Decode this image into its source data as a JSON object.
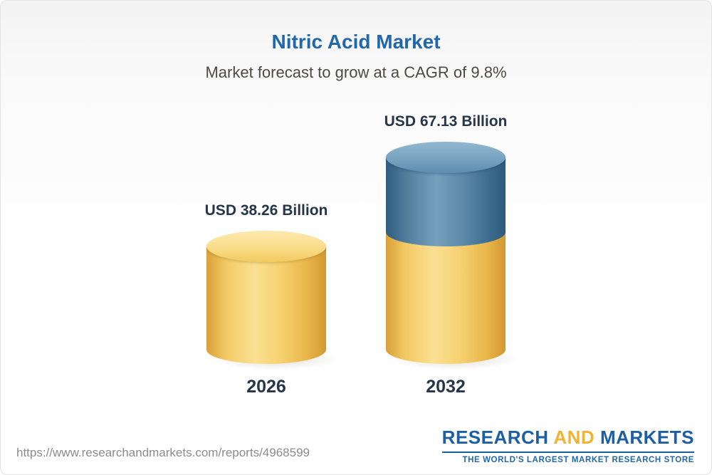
{
  "header": {
    "title": "Nitric Acid Market",
    "subtitle": "Market forecast to grow at a CAGR of 9.8%"
  },
  "chart_data": {
    "type": "bar",
    "categories": [
      "2026",
      "2032"
    ],
    "values": [
      38.26,
      67.13
    ],
    "value_labels": [
      "USD 38.26 Billion",
      "USD 67.13 Billion"
    ],
    "unit": "USD Billion",
    "title": "Nitric Acid Market",
    "subtitle": "Market forecast to grow at a CAGR of 9.8%",
    "cagr": "9.8%",
    "legend": "none",
    "grid": false,
    "colors": {
      "base_segment": "#F2C964",
      "growth_segment": "#4F7FA2",
      "title": "#2268A8",
      "label": "#26364A"
    }
  },
  "footer": {
    "url": "https://www.researchandmarkets.com/reports/4968599",
    "logo": {
      "research": "RESEARCH",
      "and": "AND",
      "markets": "MARKETS",
      "tagline": "THE WORLD'S LARGEST MARKET RESEARCH STORE"
    }
  }
}
